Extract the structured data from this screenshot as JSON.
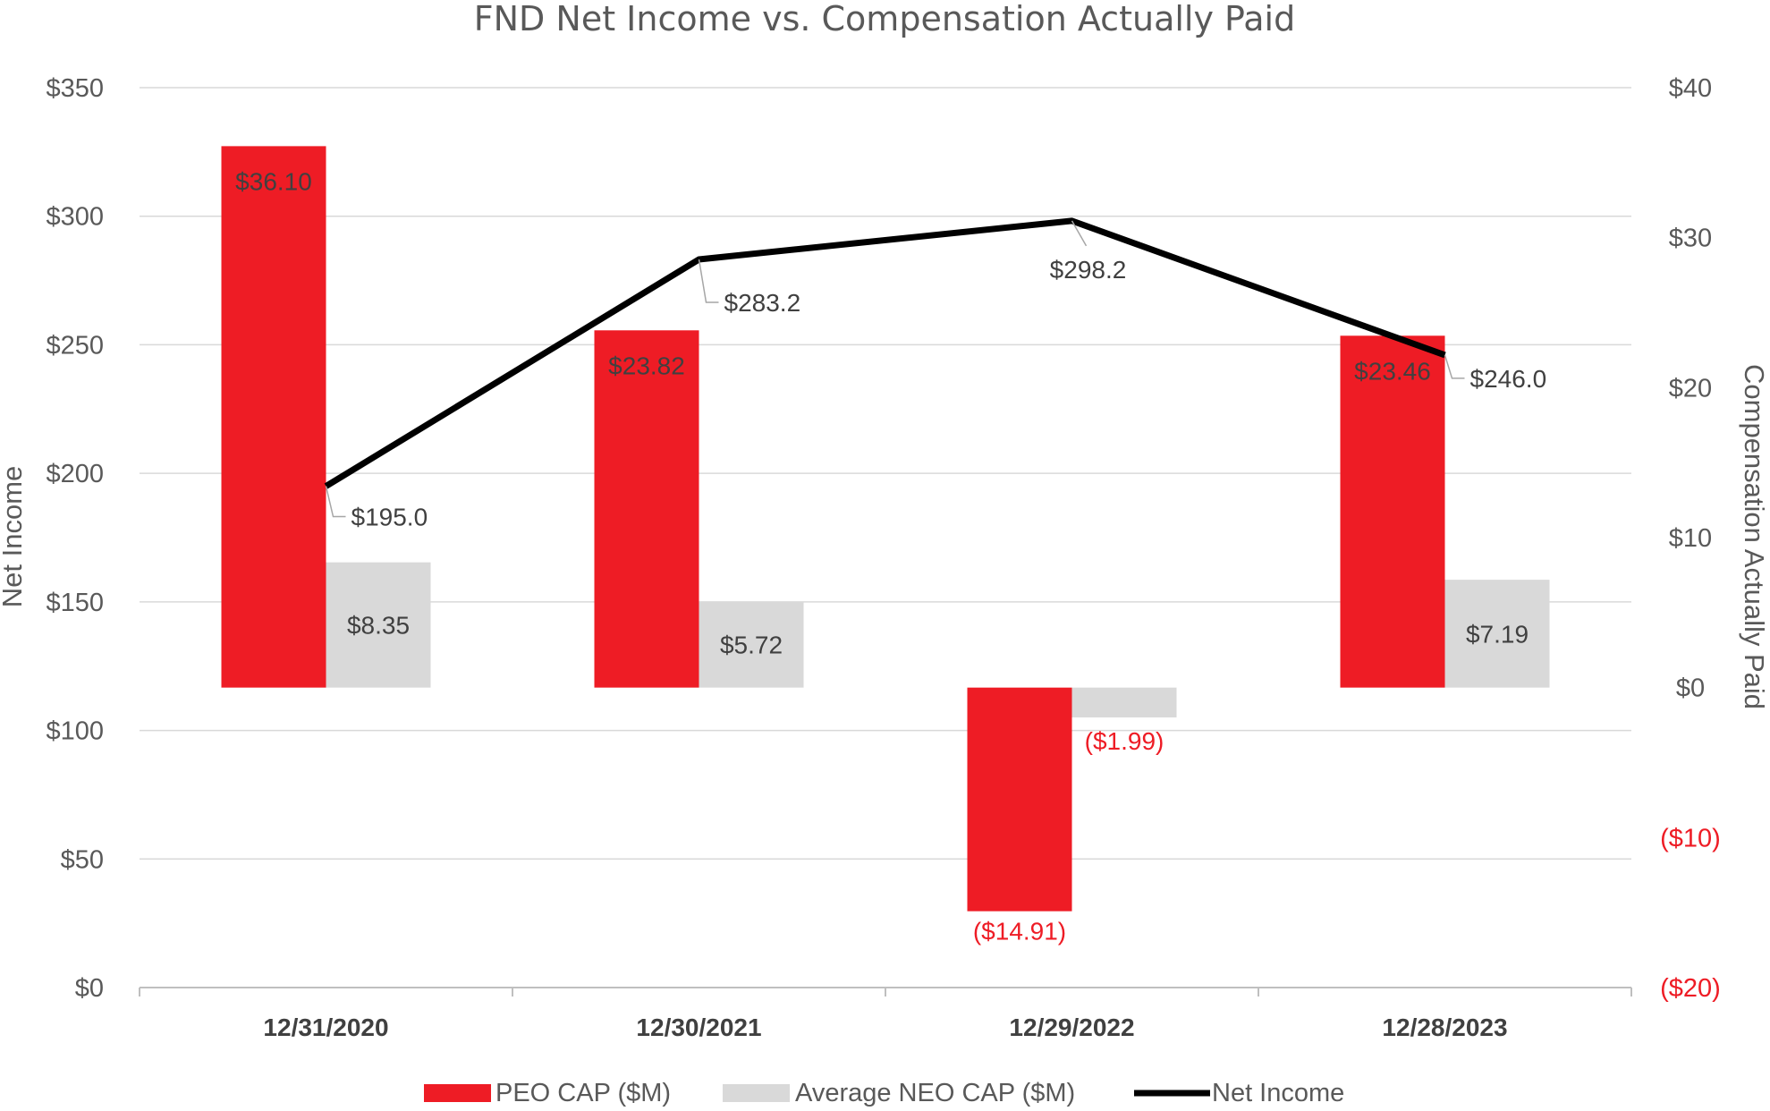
{
  "chart_data": {
    "type": "bar",
    "title": "FND Net Income vs. Compensation Actually Paid",
    "categories": [
      "12/31/2020",
      "12/30/2021",
      "12/29/2022",
      "12/28/2023"
    ],
    "y_left": {
      "label": "Net Income",
      "range": [
        0,
        350
      ],
      "ticks": [
        0,
        50,
        100,
        150,
        200,
        250,
        300,
        350
      ],
      "tick_labels": [
        "$0",
        "$50",
        "$100",
        "$150",
        "$200",
        "$250",
        "$300",
        "$350"
      ]
    },
    "y_right": {
      "label": "Compensation Actually Paid",
      "range": [
        -20,
        40
      ],
      "ticks": [
        -20,
        -10,
        0,
        10,
        20,
        30,
        40
      ],
      "tick_labels": [
        "($20)",
        "($10)",
        "$0",
        "$10",
        "$20",
        "$30",
        "$40"
      ]
    },
    "series": [
      {
        "name": "PEO CAP ($M)",
        "type": "bar",
        "axis": "right",
        "color": "#ee1c25",
        "values": [
          36.1,
          23.82,
          -14.91,
          23.46
        ],
        "labels": [
          "$36.10",
          "$23.82",
          "($14.91)",
          "$23.46"
        ]
      },
      {
        "name": "Average NEO CAP ($M)",
        "type": "bar",
        "axis": "right",
        "color": "#d9d9d9",
        "values": [
          8.35,
          5.72,
          -1.99,
          7.19
        ],
        "labels": [
          "$8.35",
          "$5.72",
          "($1.99)",
          "$7.19"
        ]
      },
      {
        "name": "Net Income",
        "type": "line",
        "axis": "left",
        "color": "#000000",
        "values": [
          195.0,
          283.2,
          298.2,
          246.0
        ],
        "labels": [
          "$195.0",
          "$283.2",
          "$298.2",
          "$246.0"
        ]
      }
    ],
    "legend_position": "bottom",
    "grid": true,
    "negative_label_color": "#ee1c25"
  }
}
